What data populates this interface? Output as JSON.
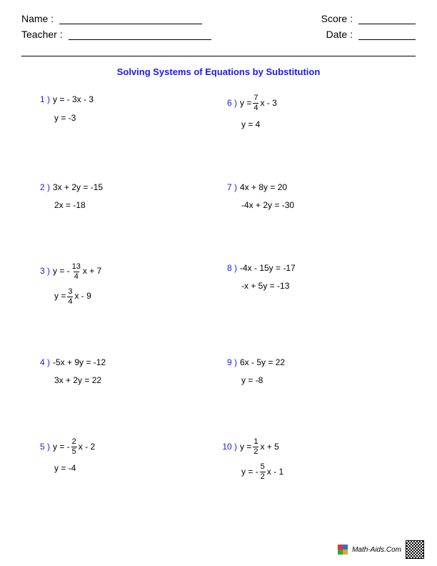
{
  "header": {
    "name_label": "Name :",
    "teacher_label": "Teacher :",
    "score_label": "Score :",
    "date_label": "Date :"
  },
  "title": {
    "text": "Solving Systems of Equations by Substitution",
    "color": "#1a1af0"
  },
  "numcolor": "#1a1af0",
  "problems": [
    {
      "n": "1 )",
      "eq1": "y = - 3x - 3",
      "eq2": "y = -3"
    },
    {
      "n": "6 )",
      "eq1_pre": "y = ",
      "frac": {
        "num": "7",
        "den": "4"
      },
      "eq1_post": "x - 3",
      "eq2": "y = 4"
    },
    {
      "n": "2 )",
      "eq1": "3x + 2y = -15",
      "eq2": "2x = -18"
    },
    {
      "n": "7 )",
      "eq1": "4x + 8y = 20",
      "eq2": "-4x + 2y = -30"
    },
    {
      "n": "3 )",
      "eq1_pre": "y = - ",
      "frac": {
        "num": "13",
        "den": "4"
      },
      "eq1_post": "x + 7",
      "eq2_pre": "y = ",
      "eq2_frac": {
        "num": "3",
        "den": "4"
      },
      "eq2_post": "x - 9"
    },
    {
      "n": "8 )",
      "eq1": "-4x - 15y = -17",
      "eq2": "-x + 5y = -13"
    },
    {
      "n": "4 )",
      "eq1": "-5x + 9y = -12",
      "eq2": "3x + 2y = 22"
    },
    {
      "n": "9 )",
      "eq1": "6x - 5y = 22",
      "eq2": "y = -8"
    },
    {
      "n": "5 )",
      "eq1_pre": "y = - ",
      "frac": {
        "num": "2",
        "den": "5"
      },
      "eq1_post": "x - 2",
      "eq2": "y = -4"
    },
    {
      "n": "10 )",
      "eq1_pre": "y = ",
      "frac": {
        "num": "1",
        "den": "2"
      },
      "eq1_post": "x + 5",
      "eq2_pre": "y = - ",
      "eq2_frac": {
        "num": "5",
        "den": "2"
      },
      "eq2_post": "x - 1"
    }
  ],
  "footer": {
    "site": "Math-Aids.Com"
  }
}
